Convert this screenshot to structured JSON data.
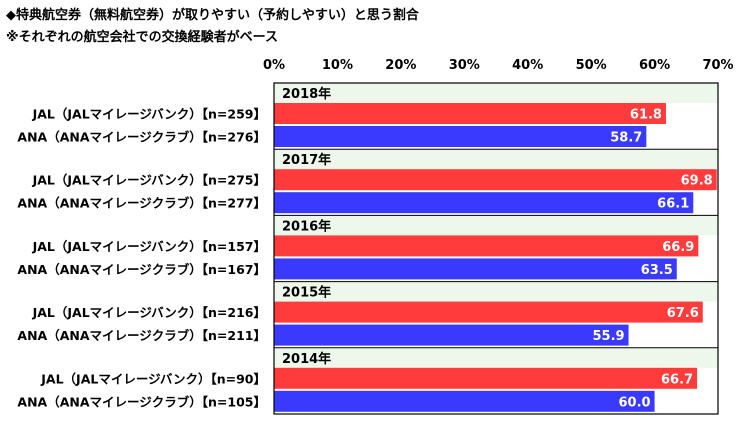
{
  "title": "◆特典航空券（無料航空券）が取りやすい（予約しやすい）と思う割合",
  "subtitle": "※それぞれの航空会社での交換経験者がベース",
  "chart_data": {
    "type": "bar",
    "orientation": "horizontal",
    "xlim": [
      0,
      70
    ],
    "x_ticks": [
      "0%",
      "10%",
      "20%",
      "30%",
      "40%",
      "50%",
      "60%",
      "70%"
    ],
    "colors": {
      "JAL": "#ff3b3b",
      "ANA": "#3a3aff",
      "year_band": "#edf7ec"
    },
    "groups": [
      {
        "year": "2018年",
        "rows": [
          {
            "label": "JAL（JALマイレージバンク）【n=259】",
            "airline": "JAL",
            "value": 61.8,
            "value_label": "61.8"
          },
          {
            "label": "ANA（ANAマイレージクラブ）【n=276】",
            "airline": "ANA",
            "value": 58.7,
            "value_label": "58.7"
          }
        ]
      },
      {
        "year": "2017年",
        "rows": [
          {
            "label": "JAL（JALマイレージバンク）【n=275】",
            "airline": "JAL",
            "value": 69.8,
            "value_label": "69.8"
          },
          {
            "label": "ANA（ANAマイレージクラブ）【n=277】",
            "airline": "ANA",
            "value": 66.1,
            "value_label": "66.1"
          }
        ]
      },
      {
        "year": "2016年",
        "rows": [
          {
            "label": "JAL（JALマイレージバンク）【n=157】",
            "airline": "JAL",
            "value": 66.9,
            "value_label": "66.9"
          },
          {
            "label": "ANA（ANAマイレージクラブ）【n=167】",
            "airline": "ANA",
            "value": 63.5,
            "value_label": "63.5"
          }
        ]
      },
      {
        "year": "2015年",
        "rows": [
          {
            "label": "JAL（JALマイレージバンク）【n=216】",
            "airline": "JAL",
            "value": 67.6,
            "value_label": "67.6"
          },
          {
            "label": "ANA（ANAマイレージクラブ）【n=211】",
            "airline": "ANA",
            "value": 55.9,
            "value_label": "55.9"
          }
        ]
      },
      {
        "year": "2014年",
        "rows": [
          {
            "label": "JAL（JALマイレージバンク）【n=90】",
            "airline": "JAL",
            "value": 66.7,
            "value_label": "66.7"
          },
          {
            "label": "ANA（ANAマイレージクラブ）【n=105】",
            "airline": "ANA",
            "value": 60.0,
            "value_label": "60.0"
          }
        ]
      }
    ]
  }
}
